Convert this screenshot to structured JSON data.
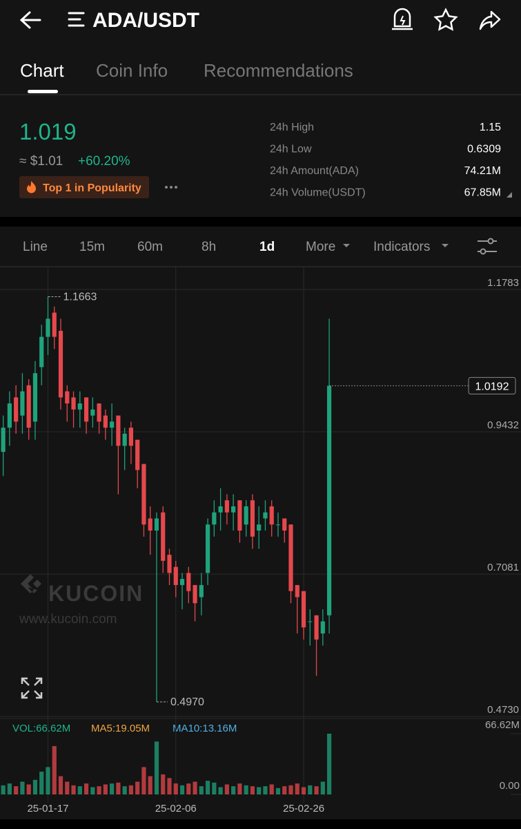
{
  "header": {
    "title": "ADA/USDT"
  },
  "tabs": [
    "Chart",
    "Coin Info",
    "Recommendations"
  ],
  "ticker": {
    "price": "1.019",
    "usd": "≈ $1.01",
    "change": "+60.20%",
    "badge": "Top 1 in Popularity",
    "stats": [
      {
        "label": "24h High",
        "value": "1.15"
      },
      {
        "label": "24h Low",
        "value": "0.6309"
      },
      {
        "label": "24h Amount(ADA)",
        "value": "74.21M"
      },
      {
        "label": "24h Volume(USDT)",
        "value": "67.85M"
      }
    ]
  },
  "intervals": [
    "Line",
    "15m",
    "60m",
    "8h",
    "1d",
    "More",
    "Indicators"
  ],
  "watermark": {
    "brand": "KUCOIN",
    "url": "www.kucoin.com"
  },
  "chart_data": {
    "type": "candlestick",
    "open": [
      0.91,
      0.95,
      1.0,
      0.97,
      1.02,
      0.96,
      1.05,
      1.1,
      1.14,
      1.11,
      1.01,
      1.0,
      0.98,
      1.0,
      0.97,
      0.99,
      0.97,
      0.95,
      0.97,
      0.92,
      0.95,
      0.93,
      0.89,
      0.8,
      0.78,
      0.81,
      0.74,
      0.72,
      0.69,
      0.71,
      0.69,
      0.67,
      0.71,
      0.79,
      0.81,
      0.83,
      0.81,
      0.83,
      0.79,
      0.83,
      0.78,
      0.8,
      0.82,
      0.79,
      0.8,
      0.79,
      0.69,
      0.68,
      0.63,
      0.64,
      0.61,
      0.64
    ],
    "high": [
      0.97,
      1.01,
      1.02,
      1.04,
      1.03,
      1.06,
      1.12,
      1.1663,
      1.15,
      1.13,
      1.02,
      1.01,
      1.01,
      1.0,
      1.0,
      0.99,
      0.98,
      0.99,
      0.97,
      0.95,
      0.96,
      0.93,
      0.89,
      0.82,
      0.81,
      0.82,
      0.75,
      0.73,
      0.71,
      0.72,
      0.69,
      0.71,
      0.8,
      0.83,
      0.85,
      0.84,
      0.84,
      0.83,
      0.83,
      0.84,
      0.82,
      0.83,
      0.83,
      0.81,
      0.8,
      0.79,
      0.69,
      0.68,
      0.65,
      0.64,
      0.65,
      1.13
    ],
    "low": [
      0.87,
      0.92,
      0.94,
      0.94,
      0.93,
      0.93,
      1.02,
      1.07,
      1.08,
      0.98,
      0.96,
      0.95,
      0.95,
      0.94,
      0.95,
      0.94,
      0.93,
      0.92,
      0.84,
      0.88,
      0.89,
      0.85,
      0.77,
      0.74,
      0.497,
      0.71,
      0.69,
      0.67,
      0.65,
      0.66,
      0.63,
      0.64,
      0.69,
      0.77,
      0.78,
      0.79,
      0.78,
      0.76,
      0.77,
      0.75,
      0.75,
      0.78,
      0.77,
      0.77,
      0.76,
      0.66,
      0.61,
      0.6,
      0.59,
      0.54,
      0.59,
      0.61
    ],
    "close": [
      0.95,
      0.99,
      0.96,
      1.01,
      0.95,
      1.04,
      1.1,
      1.13,
      1.1,
      1.0,
      0.99,
      0.98,
      0.99,
      0.96,
      0.98,
      0.96,
      0.95,
      0.96,
      0.92,
      0.94,
      0.92,
      0.88,
      0.79,
      0.78,
      0.8,
      0.73,
      0.71,
      0.69,
      0.7,
      0.68,
      0.66,
      0.69,
      0.79,
      0.81,
      0.82,
      0.81,
      0.82,
      0.78,
      0.82,
      0.77,
      0.79,
      0.81,
      0.79,
      0.79,
      0.78,
      0.68,
      0.67,
      0.62,
      0.63,
      0.6,
      0.63,
      1.0192
    ],
    "up_color": "#1fa37c",
    "down_color": "#e5484d",
    "xlim": [
      -0.5,
      81
    ],
    "xticks": [
      {
        "value": 7,
        "label": "25-01-17"
      },
      {
        "value": 27,
        "label": "25-02-06"
      },
      {
        "value": 47,
        "label": "25-02-26"
      }
    ],
    "ylim": [
      0.4696,
      1.2114
    ],
    "yticks": [
      1.1783,
      0.9432,
      0.7081,
      {
        "value": 0.473,
        "label": "0.4730"
      }
    ],
    "last_price": 1.0192,
    "max_marker": 1.1663,
    "min_marker": {
      "value": 0.497,
      "label": "0.4970"
    },
    "grid": true,
    "volume": {
      "legend": "VOL:66.62M",
      "ma5": "MA5:19.05M",
      "ma10": "MA10:13.16M",
      "values": [
        10,
        12,
        9,
        14,
        11,
        16,
        25,
        30,
        53,
        20,
        14,
        10,
        9,
        12,
        8,
        9,
        11,
        12,
        13,
        9,
        10,
        14,
        30,
        20,
        58,
        22,
        18,
        12,
        10,
        12,
        14,
        9,
        15,
        13,
        8,
        11,
        9,
        12,
        10,
        9,
        8,
        9,
        11,
        7,
        9,
        10,
        12,
        8,
        10,
        9,
        14,
        66.62
      ],
      "ylim": [
        0,
        66.62
      ],
      "yticks": [
        {
          "value": 66.62,
          "label": "66.62M"
        },
        {
          "value": 0,
          "label": "0.00"
        }
      ]
    }
  }
}
